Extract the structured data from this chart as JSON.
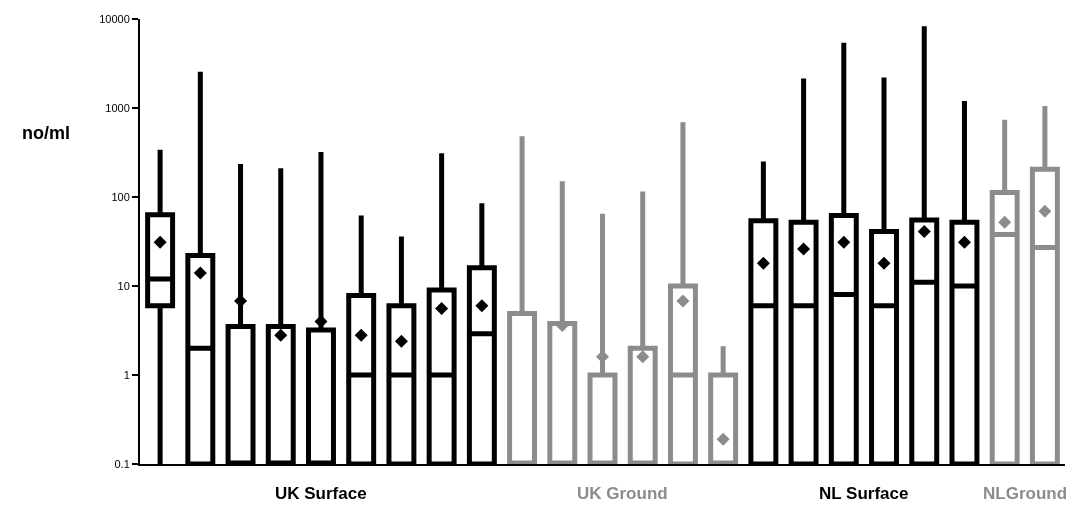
{
  "chart_data": {
    "type": "box",
    "ylabel": "no/ml",
    "log": true,
    "grid": false,
    "legend": "bottom",
    "tick_labels": "y",
    "marker": "diamond",
    "ylim": [
      0.1,
      10000
    ],
    "yticks": [
      0.1,
      1,
      10,
      100,
      1000,
      10000
    ],
    "categories": [
      null,
      null,
      null,
      null,
      null,
      null,
      null,
      null,
      null,
      null,
      null,
      null,
      null,
      null,
      null,
      null,
      null,
      null,
      null,
      null,
      null,
      null,
      null
    ],
    "series": [
      {
        "name": "UK Surface",
        "color": "#000000",
        "boxes": [
          {
            "low": 0.1,
            "q1": 6,
            "median": 12,
            "q3": 63,
            "high": 340,
            "mean": 31
          },
          {
            "low": 0.1,
            "q1": 0.1,
            "median": 2,
            "q3": 22,
            "high": 2550,
            "mean": 14
          },
          {
            "low": 0.1,
            "q1": 0.1,
            "median": 0.1,
            "q3": 3.5,
            "high": 235,
            "mean": 6.8
          },
          {
            "low": 0.1,
            "q1": 0.1,
            "median": 0.1,
            "q3": 3.5,
            "high": 210,
            "mean": 2.8
          },
          {
            "low": 0.1,
            "q1": 0.1,
            "median": 0.1,
            "q3": 3.2,
            "high": 320,
            "mean": 4
          },
          {
            "low": 0.1,
            "q1": 0.1,
            "median": 1,
            "q3": 7.8,
            "high": 62,
            "mean": 2.8
          },
          {
            "low": 0.1,
            "q1": 0.1,
            "median": 1,
            "q3": 6,
            "high": 36,
            "mean": 2.4
          },
          {
            "low": 0.1,
            "q1": 0.1,
            "median": 1,
            "q3": 9,
            "high": 310,
            "mean": 5.6
          },
          {
            "low": 0.1,
            "q1": 0.1,
            "median": 2.9,
            "q3": 16,
            "high": 85,
            "mean": 6
          },
          null,
          null,
          null,
          null,
          null,
          null,
          null,
          null,
          null,
          null,
          null,
          null,
          null,
          null
        ]
      },
      {
        "name": "UK Ground",
        "color": "#8c8c8c",
        "boxes": [
          null,
          null,
          null,
          null,
          null,
          null,
          null,
          null,
          null,
          {
            "low": 0.1,
            "q1": 0.1,
            "median": 0.1,
            "q3": 4.9,
            "high": 480
          },
          {
            "low": 0.1,
            "q1": 0.1,
            "median": 0.1,
            "q3": 3.8,
            "high": 150,
            "mean": 3.6
          },
          {
            "low": 0.1,
            "q1": 0.1,
            "median": 0.1,
            "q3": 1,
            "high": 65,
            "mean": 1.6
          },
          {
            "low": 0.1,
            "q1": 0.1,
            "median": 0.1,
            "q3": 2,
            "high": 115,
            "mean": 1.6
          },
          {
            "low": 0.1,
            "q1": 0.1,
            "median": 1,
            "q3": 10,
            "high": 690,
            "mean": 6.8
          },
          {
            "low": 0.1,
            "q1": 0.1,
            "median": 0.1,
            "q3": 1,
            "high": 2.1,
            "mean": 0.19
          },
          null,
          null,
          null,
          null,
          null,
          null,
          null,
          null
        ]
      },
      {
        "name": "NL Surface",
        "color": "#000000",
        "boxes": [
          null,
          null,
          null,
          null,
          null,
          null,
          null,
          null,
          null,
          null,
          null,
          null,
          null,
          null,
          null,
          {
            "low": 0.1,
            "q1": 0.1,
            "median": 6,
            "q3": 54,
            "high": 250,
            "mean": 18
          },
          {
            "low": 0.1,
            "q1": 0.1,
            "median": 6,
            "q3": 52,
            "high": 2150,
            "mean": 26
          },
          {
            "low": 0.1,
            "q1": 0.1,
            "median": 8,
            "q3": 62,
            "high": 5400,
            "mean": 31
          },
          {
            "low": 0.1,
            "q1": 0.1,
            "median": 6,
            "q3": 41,
            "high": 2200,
            "mean": 18
          },
          {
            "low": 0.1,
            "q1": 0.1,
            "median": 11,
            "q3": 55,
            "high": 8300,
            "mean": 41
          },
          {
            "low": 0.1,
            "q1": 0.1,
            "median": 10,
            "q3": 52,
            "high": 1200,
            "mean": 31
          },
          null,
          null
        ]
      },
      {
        "name": "NLGround",
        "color": "#8c8c8c",
        "boxes": [
          null,
          null,
          null,
          null,
          null,
          null,
          null,
          null,
          null,
          null,
          null,
          null,
          null,
          null,
          null,
          null,
          null,
          null,
          null,
          null,
          null,
          {
            "low": 0.1,
            "q1": 0.1,
            "median": 38,
            "q3": 112,
            "high": 740,
            "mean": 52
          },
          {
            "low": 0.1,
            "q1": 0.1,
            "median": 27,
            "q3": 205,
            "high": 1050,
            "mean": 69
          }
        ]
      }
    ]
  }
}
